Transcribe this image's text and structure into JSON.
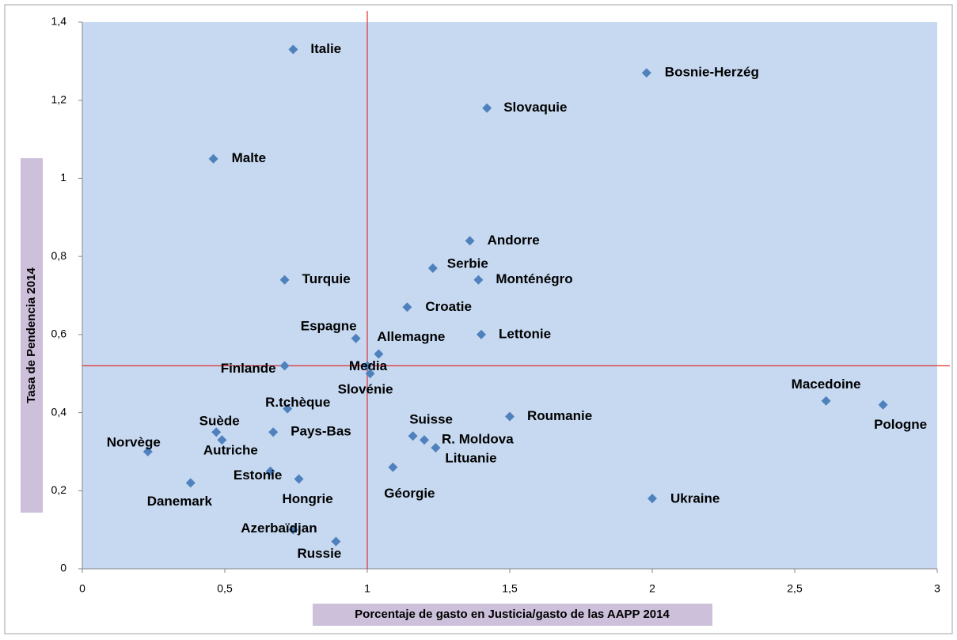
{
  "chart_data": {
    "type": "scatter",
    "x_label": "Porcentaje de gasto en Justicia/gasto de las AAPP 2014",
    "y_label": "Tasa de Pendencia 2014",
    "labels": [
      "Italie",
      "Bosnie-Herzég",
      "Slovaquie",
      "Malte",
      "Andorre",
      "Serbie",
      "Monténégro",
      "Turquie",
      "Croatie",
      "Espagne",
      "Allemagne",
      "Lettonie",
      "Finlande",
      "Media",
      "Slovénie",
      "R.tchèque",
      "Macedoine",
      "Pologne",
      "Roumanie",
      "Suède",
      "Autriche",
      "Pays-Bas",
      "Suisse",
      "R. Moldova",
      "Lituanie",
      "Norvège",
      "Géorgie",
      "Estonie",
      "Hongrie",
      "Danemark",
      "Ukraine",
      "Azerbaïdjan",
      "Russie"
    ],
    "x": [
      0.74,
      1.98,
      1.42,
      0.46,
      1.36,
      1.23,
      1.39,
      0.71,
      1.14,
      0.96,
      1.04,
      1.4,
      0.71,
      1.0,
      1.01,
      0.72,
      2.61,
      2.81,
      1.5,
      0.47,
      0.49,
      0.67,
      1.16,
      1.2,
      1.24,
      0.23,
      1.09,
      0.66,
      0.76,
      0.38,
      2.0,
      0.74,
      0.89
    ],
    "y": [
      1.33,
      1.27,
      1.18,
      1.05,
      0.84,
      0.77,
      0.74,
      0.74,
      0.67,
      0.59,
      0.55,
      0.6,
      0.52,
      0.52,
      0.5,
      0.41,
      0.43,
      0.42,
      0.39,
      0.35,
      0.33,
      0.35,
      0.34,
      0.33,
      0.31,
      0.3,
      0.26,
      0.25,
      0.23,
      0.22,
      0.18,
      0.1,
      0.07
    ],
    "color": "#4f81bd",
    "reference_lines": {
      "x": 1,
      "y": 0.52,
      "color": "#e03030"
    },
    "xlim": [
      0,
      3
    ],
    "xticks": [
      0,
      {
        "value": 0.5,
        "label": "0,5"
      },
      1,
      {
        "value": 1.5,
        "label": "1,5"
      },
      2,
      {
        "value": 2.5,
        "label": "2,5"
      },
      3
    ],
    "ylim": [
      0,
      1.4
    ],
    "yticks": [
      0,
      {
        "value": 0.2,
        "label": "0,2"
      },
      {
        "value": 0.4,
        "label": "0,4"
      },
      {
        "value": 0.6,
        "label": "0,6"
      },
      {
        "value": 0.8,
        "label": "0,8"
      },
      1,
      {
        "value": 1.2,
        "label": "1,2"
      },
      {
        "value": 1.4,
        "label": "1,4"
      }
    ]
  }
}
